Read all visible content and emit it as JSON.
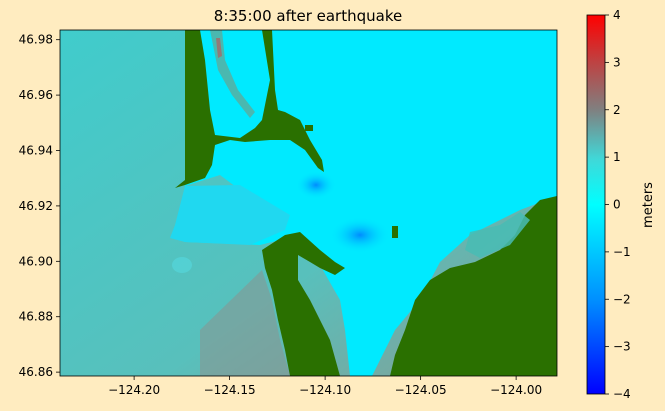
{
  "chart_data": {
    "type": "heatmap",
    "title": "8:35:00 after earthquake",
    "x_ticks": [
      -124.2,
      -124.15,
      -124.1,
      -124.05,
      -124.0
    ],
    "x_tick_labels": [
      "−124.20",
      "−124.15",
      "−124.10",
      "−124.05",
      "−124.00"
    ],
    "xlim": [
      -124.2388,
      -123.9786
    ],
    "y_ticks": [
      46.86,
      46.88,
      46.9,
      46.92,
      46.94,
      46.96,
      46.98
    ],
    "y_tick_labels": [
      "46.86",
      "46.88",
      "46.90",
      "46.92",
      "46.94",
      "46.96",
      "46.98"
    ],
    "ylim": [
      46.8586,
      46.9835
    ],
    "colorbar": {
      "label": "meters",
      "range": [
        -4,
        4
      ],
      "ticks": [
        4,
        3,
        2,
        1,
        0,
        -1,
        -2,
        -3,
        -4
      ],
      "tick_labels": [
        "4",
        "3",
        "2",
        "1",
        "0",
        "−1",
        "−2",
        "−3",
        "−4"
      ],
      "colormap": [
        "#0000ff",
        "#00ffff",
        "#808080",
        "#ff0000"
      ]
    },
    "land_color": "#2a7000",
    "water_colors": {
      "deep_channel": "#00a8ff",
      "bay": "#00e8ff",
      "offshore": "#48c8c8",
      "offshore_far": "#8aa8a0"
    },
    "grid": false
  }
}
